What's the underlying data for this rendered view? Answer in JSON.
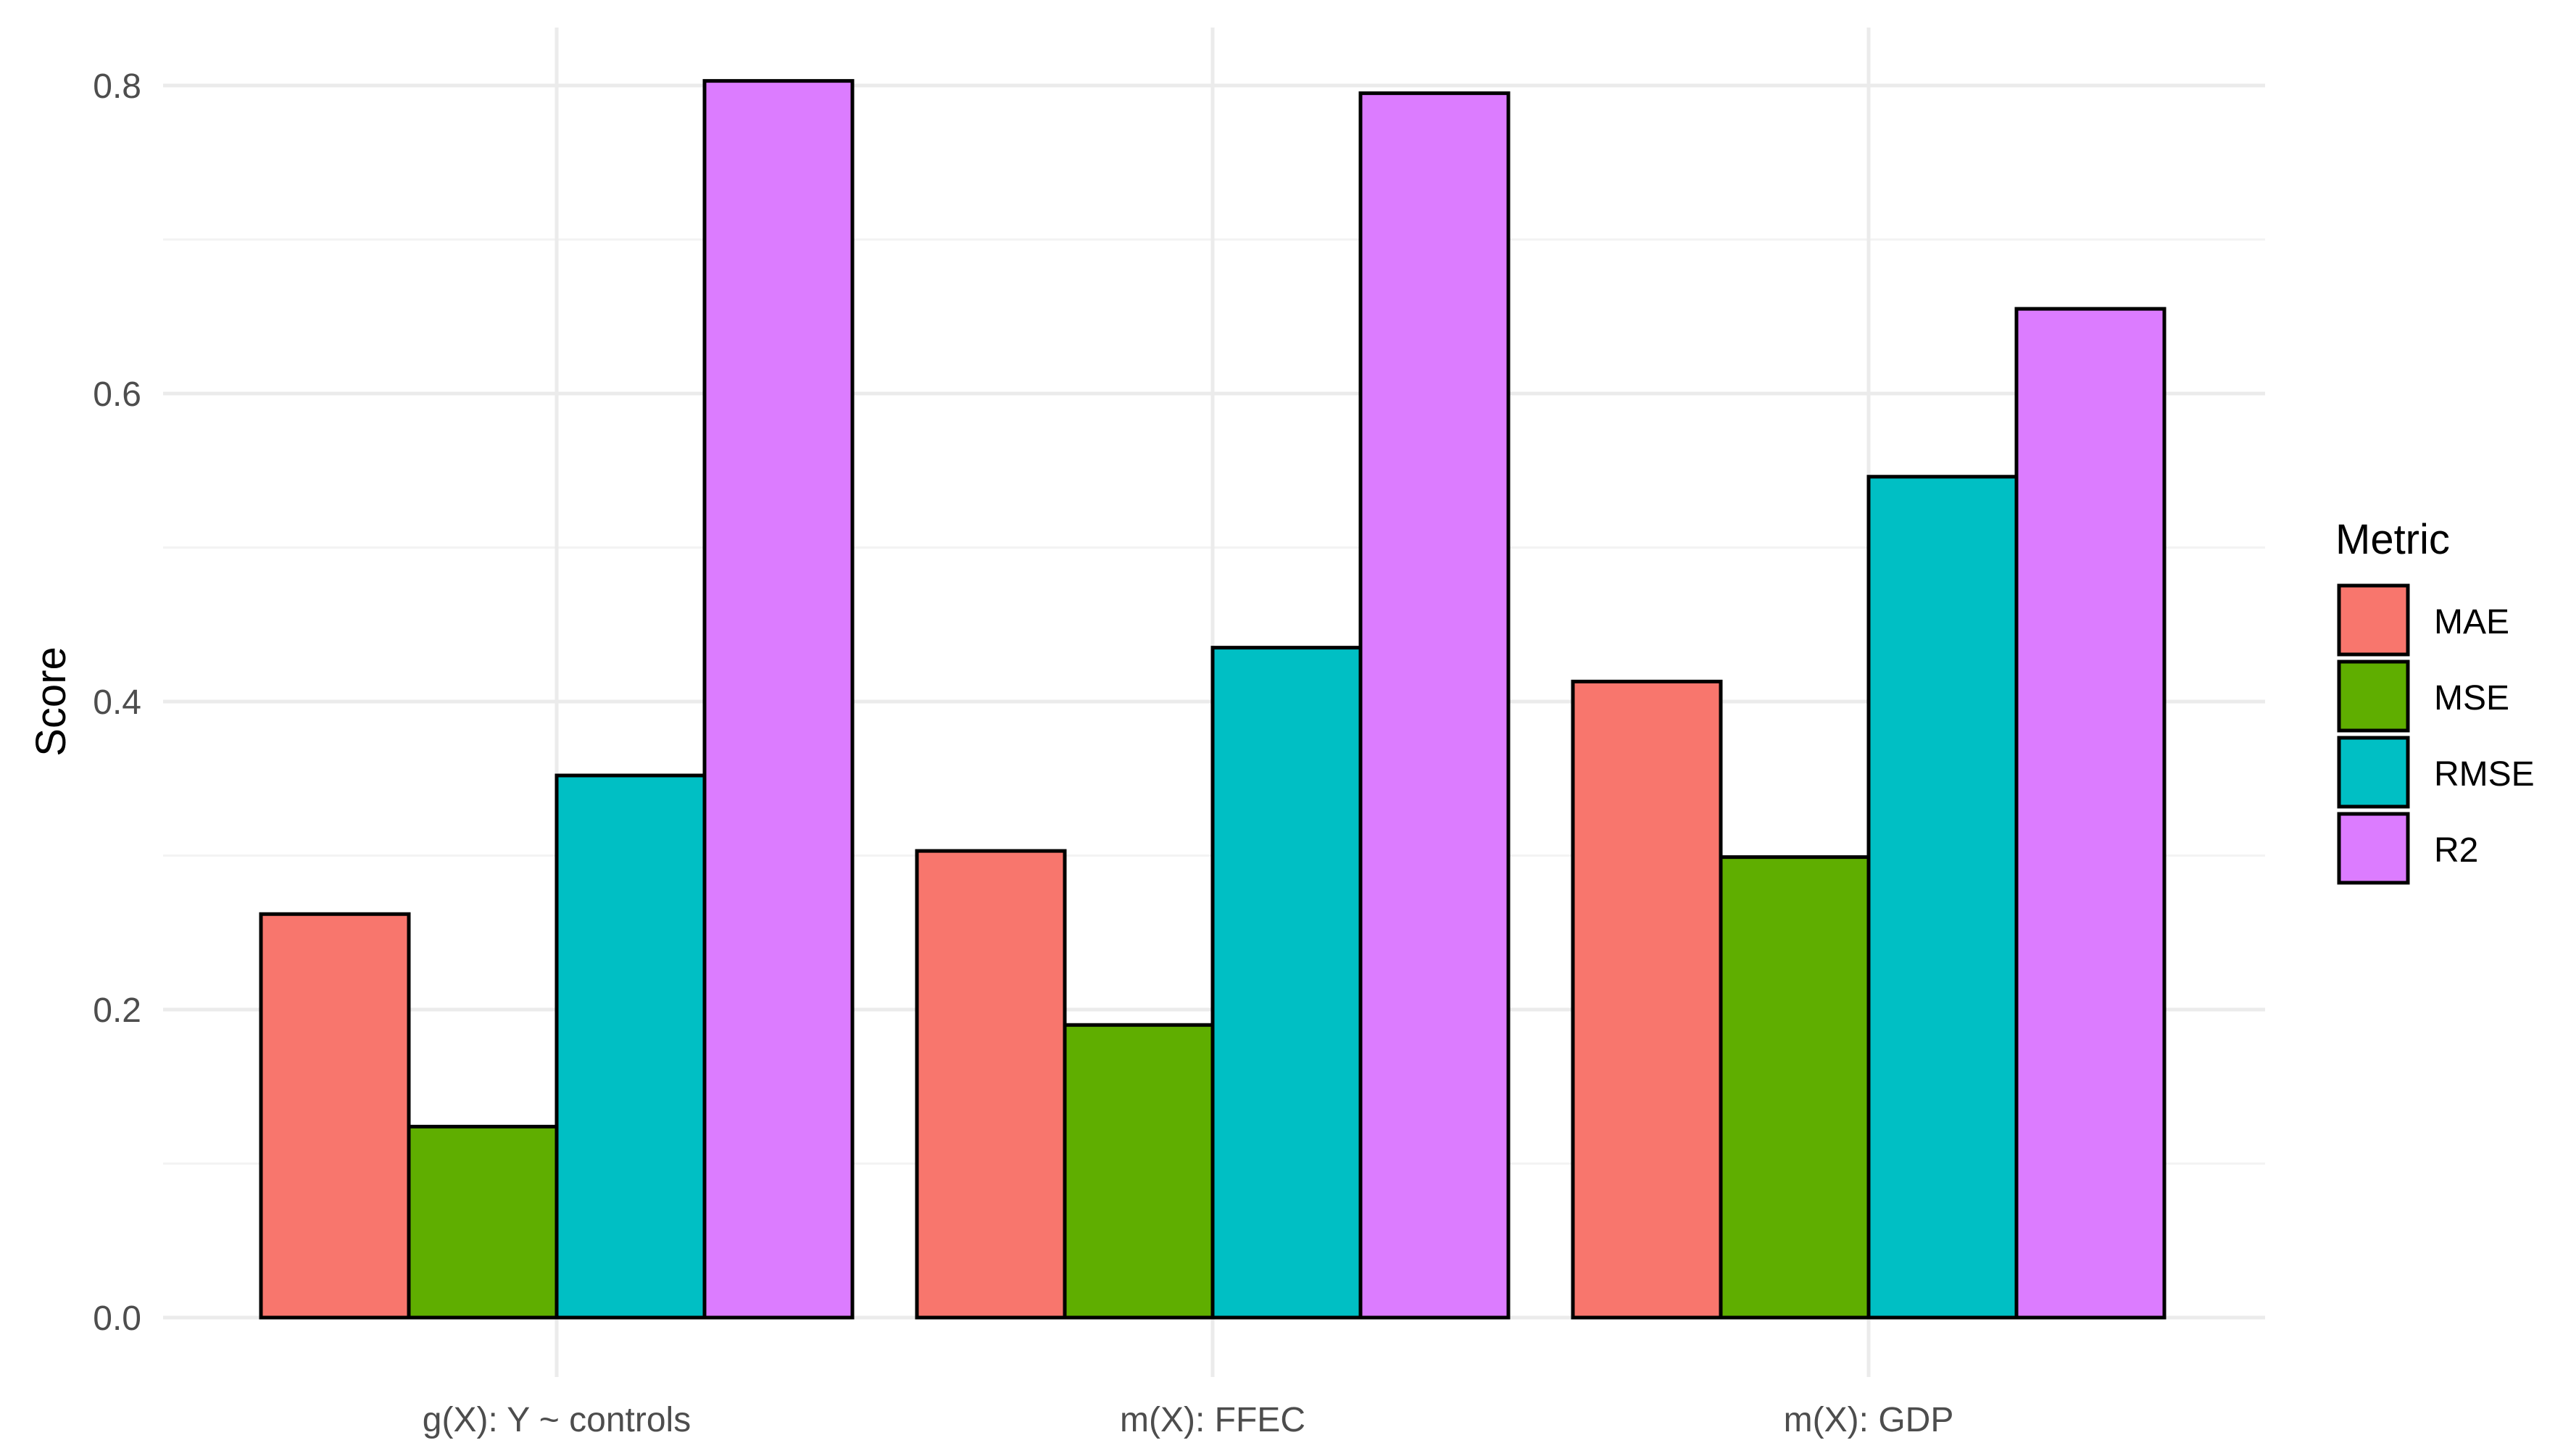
{
  "chart_data": {
    "type": "bar",
    "title": "",
    "xlabel": "",
    "ylabel": "Score",
    "ylim": [
      0,
      0.8
    ],
    "y_ticks": [
      {
        "value": 0.0,
        "label": "0.0"
      },
      {
        "value": 0.2,
        "label": "0.2"
      },
      {
        "value": 0.4,
        "label": "0.4"
      },
      {
        "value": 0.6,
        "label": "0.6"
      },
      {
        "value": 0.8,
        "label": "0.8"
      }
    ],
    "categories": [
      "g(X): Y ~ controls",
      "m(X): FFEC",
      "m(X): GDP"
    ],
    "series": [
      {
        "name": "MAE",
        "color": "#F8766D",
        "values": [
          0.262,
          0.303,
          0.413
        ]
      },
      {
        "name": "MSE",
        "color": "#5FAE00",
        "values": [
          0.124,
          0.19,
          0.299
        ]
      },
      {
        "name": "RMSE",
        "color": "#00BFC4",
        "values": [
          0.352,
          0.435,
          0.546
        ]
      },
      {
        "name": "R2",
        "color": "#DC7CFF",
        "values": [
          0.803,
          0.795,
          0.655
        ]
      }
    ],
    "legend": {
      "title": "Metric",
      "position": "right"
    },
    "grid": true,
    "bar_outline_color": "#000000",
    "grid_color": "#ebebeb"
  }
}
